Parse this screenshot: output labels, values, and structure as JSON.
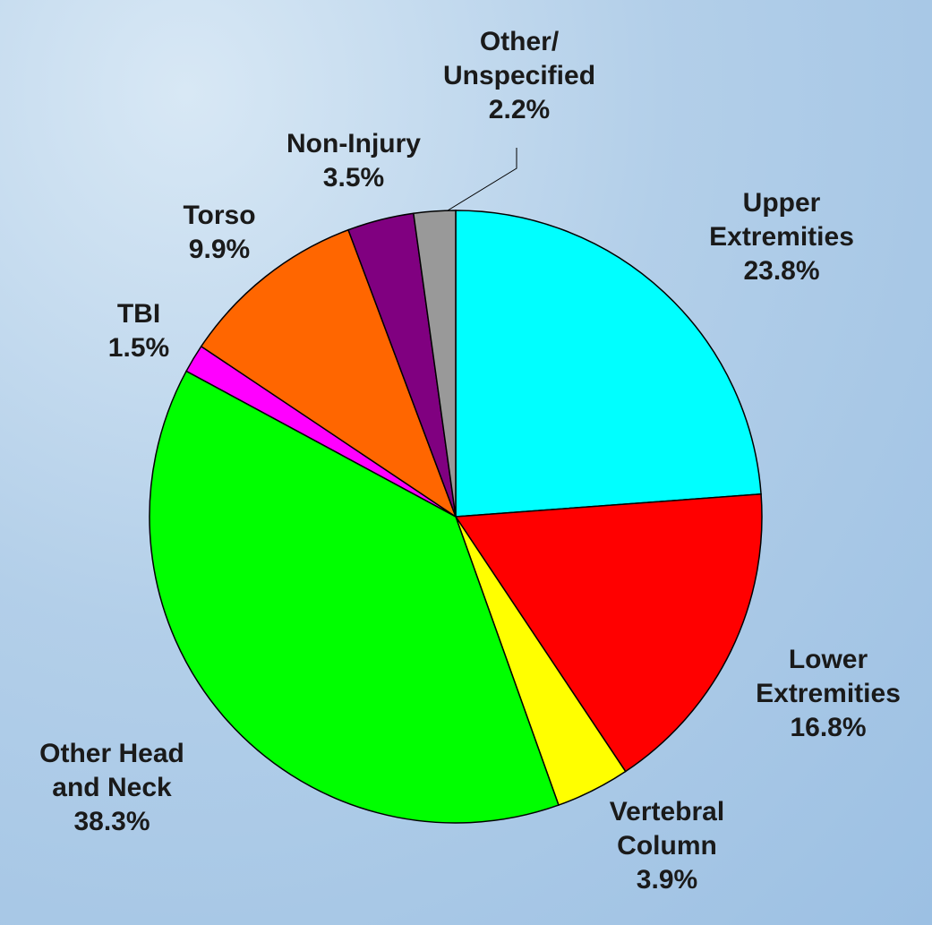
{
  "chart_data": {
    "type": "pie",
    "categories": [
      "Upper\nExtremities",
      "Lower\nExtremities",
      "Vertebral\nColumn",
      "Other Head\nand Neck",
      "TBI",
      "Torso",
      "Non-Injury",
      "Other/\nUnspecified"
    ],
    "values": [
      23.8,
      16.8,
      3.9,
      38.3,
      1.5,
      9.9,
      3.5,
      2.2
    ],
    "value_labels": [
      "23.8%",
      "16.8%",
      "3.9%",
      "38.3%",
      "1.5%",
      "9.9%",
      "3.5%",
      "2.2%"
    ],
    "colors": [
      "#00ffff",
      "#ff0000",
      "#ffff00",
      "#00ff00",
      "#ff00ff",
      "#ff6600",
      "#800080",
      "#999999"
    ]
  }
}
